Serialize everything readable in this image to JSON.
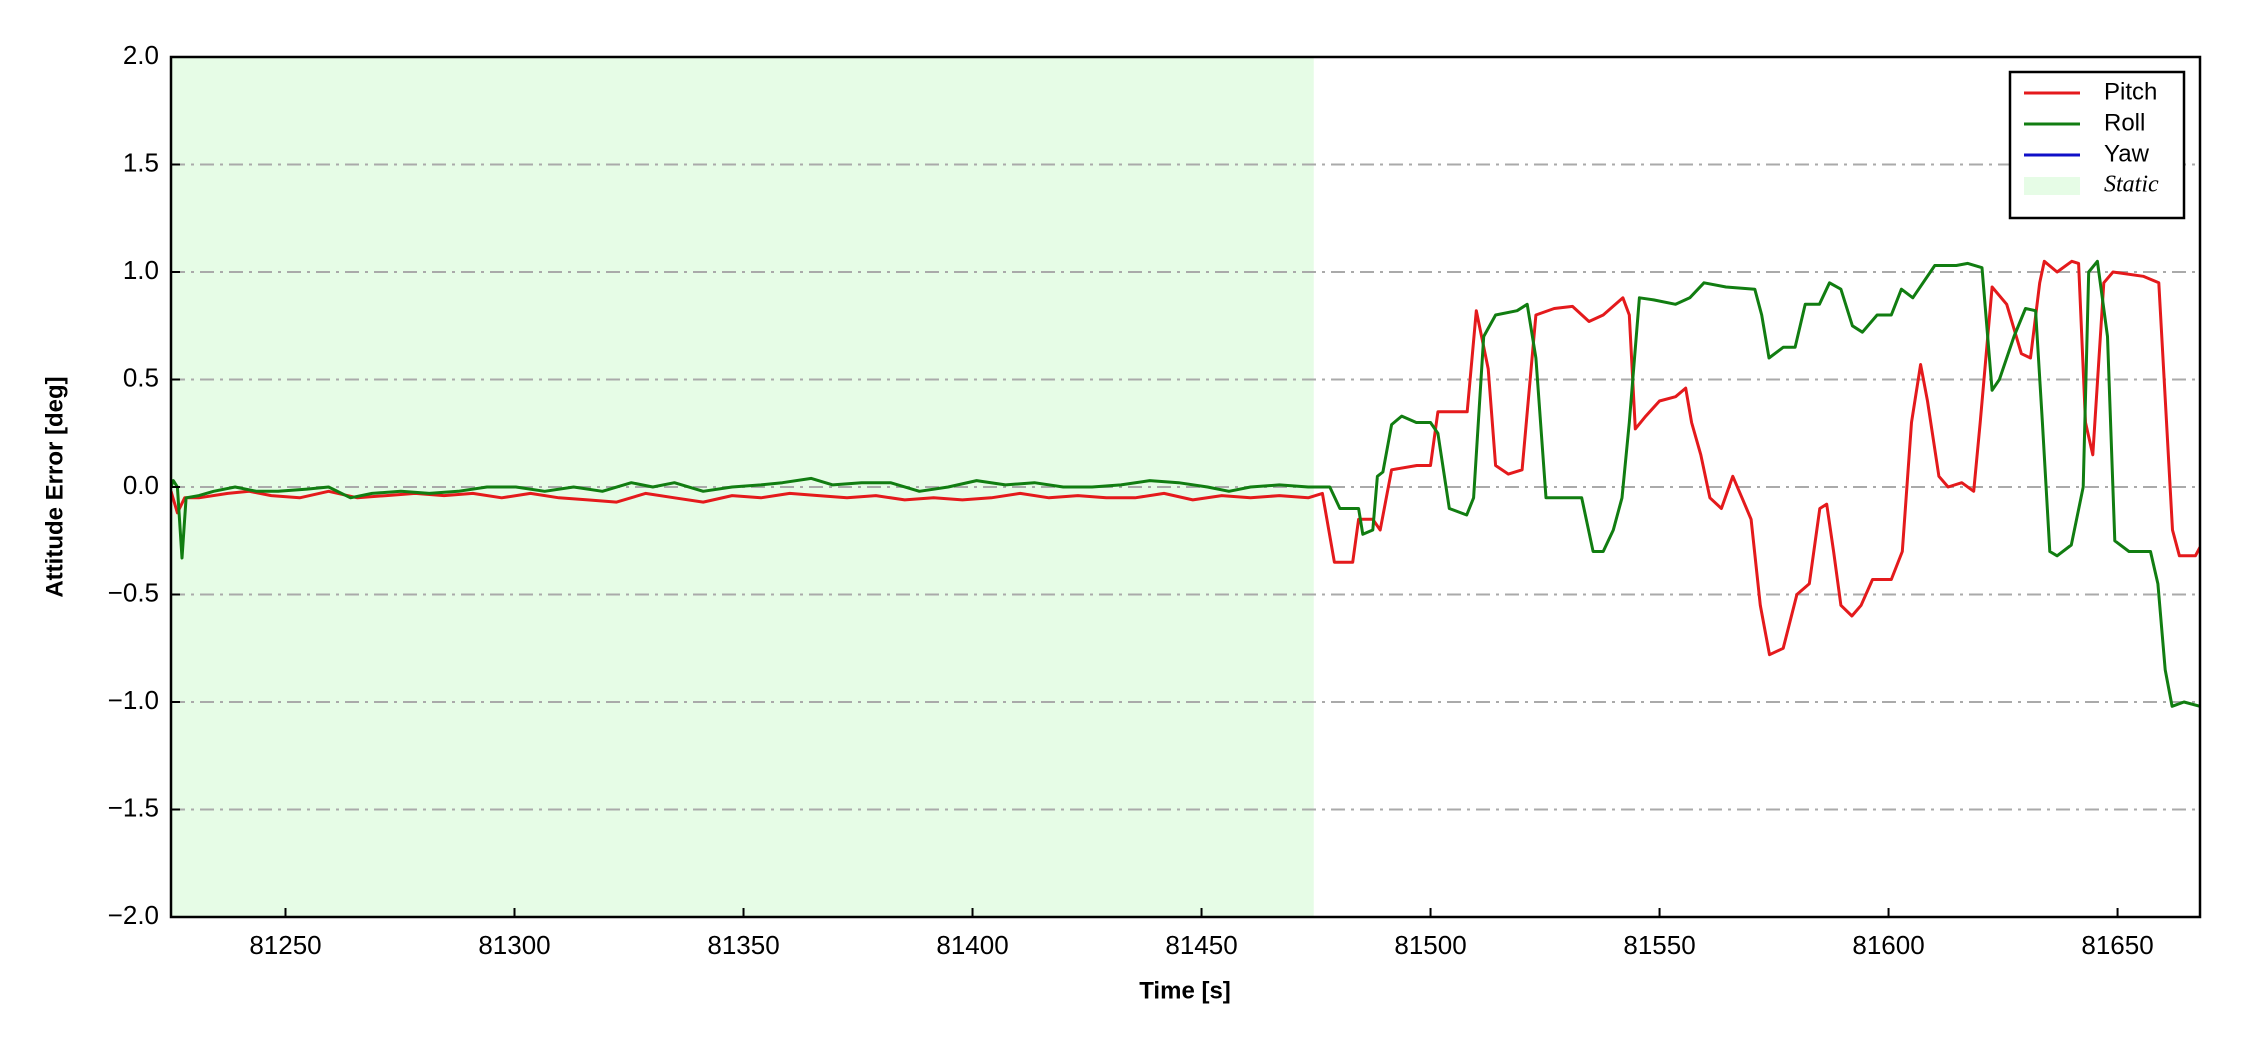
{
  "chart_data": {
    "type": "line",
    "xlabel": "Time [s]",
    "ylabel": "Attitude Error [deg]",
    "xlim": [
      81225,
      81668
    ],
    "ylim": [
      -2.0,
      2.0
    ],
    "xticks": [
      81250,
      81300,
      81350,
      81400,
      81450,
      81500,
      81550,
      81600,
      81650
    ],
    "yticks": [
      {
        "value": -2.0,
        "label": "−2.0"
      },
      {
        "value": -1.5,
        "label": "−1.5"
      },
      {
        "value": -1.0,
        "label": "−1.0"
      },
      {
        "value": -0.5,
        "label": "−0.5"
      },
      {
        "value": 0.0,
        "label": "0.0"
      },
      0.5,
      {
        "value": 1.0,
        "label": "1.0"
      },
      1.5,
      {
        "value": 2.0,
        "label": "2.0"
      }
    ],
    "grid": true,
    "legend": "upper right",
    "static_region": {
      "name": "Static",
      "color": "#e6fce6",
      "xrange": [
        81225,
        81474.5
      ]
    },
    "series": [
      {
        "name": "Pitch",
        "color": "#e41a1c",
        "x": [
          81225,
          81226.4,
          81228,
          81231.1,
          81237.4,
          81242.1,
          81246.9,
          81253.1,
          81259.4,
          81265.7,
          81272,
          81278.3,
          81284.6,
          81290.9,
          81297.2,
          81303.5,
          81309.7,
          81316,
          81322.3,
          81328.6,
          81334.9,
          81341.2,
          81347.5,
          81353.8,
          81360.1,
          81366.4,
          81372.6,
          81378.9,
          81385.2,
          81391.5,
          81397.8,
          81404.1,
          81410.4,
          81416.7,
          81423,
          81429.2,
          81435.5,
          81441.8,
          81448.1,
          81454.4,
          81460.7,
          81467,
          81473.3,
          81476.4,
          81479,
          81483,
          81484.3,
          81487.4,
          81489,
          81491.5,
          81497,
          81500,
          81501.6,
          81506,
          81508,
          81510,
          81512.6,
          81514.2,
          81517,
          81520,
          81523,
          81527,
          81531,
          81534.6,
          81537.7,
          81542,
          81543.4,
          81544.7,
          81547,
          81550,
          81553.5,
          81555.7,
          81557,
          81559,
          81561,
          81563.5,
          81566,
          81568,
          81570,
          81572,
          81574,
          81577,
          81580,
          81582.7,
          81585,
          81586.5,
          81588,
          81589.6,
          81592,
          81594,
          81596.5,
          81600.6,
          81603,
          81605,
          81607,
          81608.5,
          81611,
          81613,
          81616,
          81618.6,
          81620,
          81622.6,
          81625.8,
          81629,
          81631,
          81633,
          81634,
          81636.8,
          81640,
          81641.5,
          81643,
          81644.6,
          81647,
          81649,
          81655.6,
          81659,
          81662,
          81663.5,
          81667,
          81668
        ],
        "values": [
          -0.02,
          -0.12,
          -0.05,
          -0.05,
          -0.03,
          -0.02,
          -0.04,
          -0.05,
          -0.02,
          -0.05,
          -0.04,
          -0.03,
          -0.04,
          -0.03,
          -0.05,
          -0.03,
          -0.05,
          -0.06,
          -0.07,
          -0.03,
          -0.05,
          -0.07,
          -0.04,
          -0.05,
          -0.03,
          -0.04,
          -0.05,
          -0.04,
          -0.06,
          -0.05,
          -0.06,
          -0.05,
          -0.03,
          -0.05,
          -0.04,
          -0.05,
          -0.05,
          -0.03,
          -0.06,
          -0.04,
          -0.05,
          -0.04,
          -0.05,
          -0.03,
          -0.35,
          -0.35,
          -0.15,
          -0.15,
          -0.2,
          0.08,
          0.1,
          0.1,
          0.35,
          0.35,
          0.35,
          0.82,
          0.55,
          0.1,
          0.06,
          0.08,
          0.8,
          0.83,
          0.84,
          0.77,
          0.8,
          0.88,
          0.8,
          0.27,
          0.33,
          0.4,
          0.42,
          0.46,
          0.3,
          0.15,
          -0.05,
          -0.1,
          0.05,
          -0.05,
          -0.15,
          -0.55,
          -0.78,
          -0.75,
          -0.5,
          -0.45,
          -0.1,
          -0.08,
          -0.3,
          -0.55,
          -0.6,
          -0.55,
          -0.43,
          -0.43,
          -0.3,
          0.3,
          0.57,
          0.4,
          0.05,
          0,
          0.02,
          -0.02,
          0.3,
          0.93,
          0.85,
          0.62,
          0.6,
          0.95,
          1.05,
          1.0,
          1.05,
          1.04,
          0.3,
          0.15,
          0.95,
          1.0,
          0.98,
          0.95,
          -0.2,
          -0.32,
          -0.32,
          -0.28
        ]
      },
      {
        "name": "Roll",
        "color": "#117d11",
        "x": [
          81225,
          81225.5,
          81226.4,
          81227.4,
          81228.3,
          81231.1,
          81234.3,
          81239,
          81243.7,
          81248.4,
          81254.7,
          81259.4,
          81264.2,
          81268.9,
          81275.2,
          81281.4,
          81287.7,
          81294,
          81300.3,
          81306.6,
          81312.9,
          81319.2,
          81325.5,
          81330.2,
          81334.9,
          81341.2,
          81347.5,
          81353.8,
          81358.5,
          81364.8,
          81369.5,
          81375.8,
          81382.1,
          81388.4,
          81394.7,
          81400.9,
          81407.2,
          81413.5,
          81419.8,
          81426.1,
          81432.4,
          81438.7,
          81445,
          81451.3,
          81456,
          81460.7,
          81467,
          81473.3,
          81478,
          81480.2,
          81484.3,
          81485.2,
          81487.4,
          81488.4,
          81489.6,
          81491.5,
          81493.7,
          81496.9,
          81500,
          81501.6,
          81504.1,
          81507.9,
          81509.4,
          81511.6,
          81514.2,
          81518.9,
          81521.1,
          81523,
          81525.2,
          81528.3,
          81533,
          81535.5,
          81537.7,
          81539.9,
          81541.8,
          81543.4,
          81545.6,
          81548.7,
          81553.5,
          81556.6,
          81559.7,
          81564.5,
          81570.8,
          81572.3,
          81573.9,
          81577,
          81579.6,
          81581.8,
          81584.9,
          81587.1,
          81589.6,
          81592.1,
          81594.3,
          81597.5,
          81600.6,
          81602.8,
          81605.3,
          81610.1,
          81614.8,
          81617.3,
          81620.4,
          81622.6,
          81624.2,
          81627.4,
          81629.9,
          81632.1,
          81633.6,
          81635.2,
          81636.8,
          81639.9,
          81642.5,
          81643.7,
          81645.6,
          81647.8,
          81649.4,
          81652.5,
          81657.2,
          81658.8,
          81660.4,
          81661.9,
          81664.5,
          81668
        ],
        "values": [
          0.0,
          0.03,
          0.0,
          -0.33,
          -0.05,
          -0.04,
          -0.02,
          0.0,
          -0.02,
          -0.02,
          -0.01,
          0.0,
          -0.05,
          -0.03,
          -0.02,
          -0.03,
          -0.02,
          0.0,
          0.0,
          -0.02,
          0.0,
          -0.02,
          0.02,
          0.0,
          0.02,
          -0.02,
          0.0,
          0.01,
          0.02,
          0.04,
          0.01,
          0.02,
          0.02,
          -0.02,
          0.0,
          0.03,
          0.01,
          0.02,
          0.0,
          0.0,
          0.01,
          0.03,
          0.02,
          0.0,
          -0.02,
          0.0,
          0.01,
          0.0,
          0.0,
          -0.1,
          -0.1,
          -0.22,
          -0.2,
          0.05,
          0.07,
          0.29,
          0.33,
          0.3,
          0.3,
          0.25,
          -0.1,
          -0.13,
          -0.05,
          0.7,
          0.8,
          0.82,
          0.85,
          0.6,
          -0.05,
          -0.05,
          -0.05,
          -0.3,
          -0.3,
          -0.2,
          -0.05,
          0.3,
          0.88,
          0.87,
          0.85,
          0.88,
          0.95,
          0.93,
          0.92,
          0.8,
          0.6,
          0.65,
          0.65,
          0.85,
          0.85,
          0.95,
          0.92,
          0.75,
          0.72,
          0.8,
          0.8,
          0.92,
          0.88,
          1.03,
          1.03,
          1.04,
          1.02,
          0.45,
          0.5,
          0.7,
          0.83,
          0.82,
          0.3,
          -0.3,
          -0.32,
          -0.27,
          0.0,
          1.0,
          1.05,
          0.7,
          -0.25,
          -0.3,
          -0.3,
          -0.45,
          -0.85,
          -1.02,
          -1.0,
          -1.02
        ]
      },
      {
        "name": "Yaw",
        "color": "#1010c8",
        "x": [],
        "values": []
      }
    ]
  }
}
